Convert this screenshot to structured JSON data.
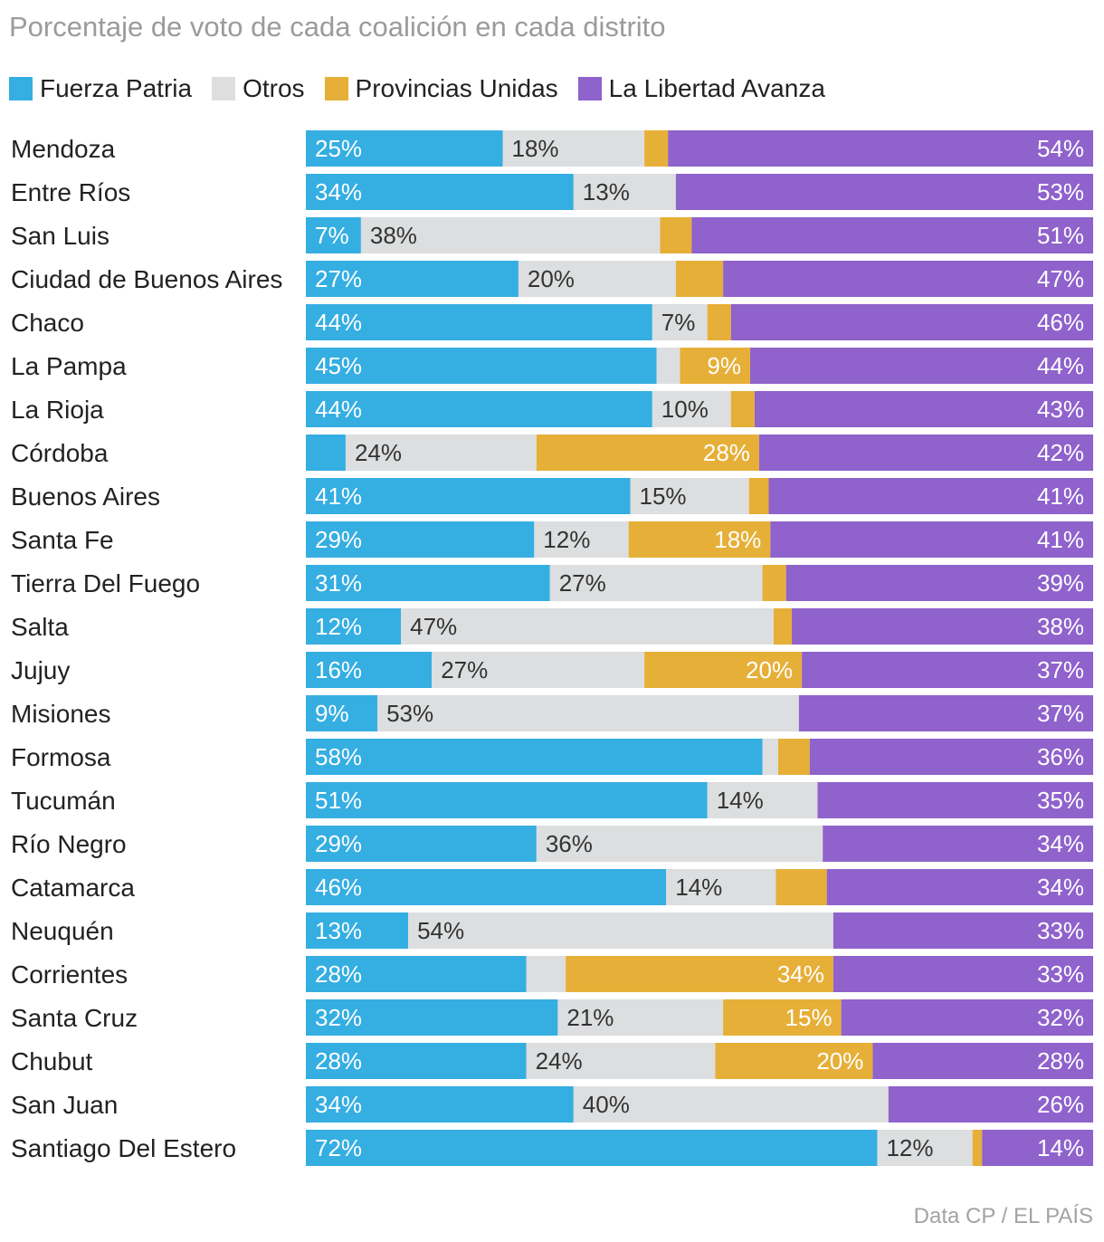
{
  "chart_data": {
    "type": "bar",
    "orientation": "horizontal",
    "stacked": true,
    "title": "Porcentaje de voto de cada coalición en cada distrito",
    "source": "Data CP / EL PAÍS",
    "series": [
      {
        "name": "Fuerza Patria",
        "color": "#35aee2",
        "values": [
          25,
          34,
          7,
          27,
          44,
          45,
          44,
          5,
          41,
          29,
          31,
          12,
          16,
          9,
          58,
          51,
          29,
          46,
          13,
          28,
          32,
          28,
          34,
          72
        ],
        "labels": [
          "25%",
          "34%",
          "7%",
          "27%",
          "44%",
          "45%",
          "44%",
          "",
          "41%",
          "29%",
          "31%",
          "12%",
          "16%",
          "9%",
          "58%",
          "51%",
          "29%",
          "46%",
          "13%",
          "28%",
          "32%",
          "28%",
          "34%",
          "72%"
        ]
      },
      {
        "name": "Otros",
        "color": "#dcdedf",
        "values": [
          18,
          13,
          38,
          20,
          7,
          3,
          10,
          24,
          15,
          12,
          27,
          47,
          27,
          53,
          2,
          14,
          36,
          14,
          54,
          5,
          21,
          24,
          40,
          12
        ],
        "labels": [
          "18%",
          "13%",
          "38%",
          "20%",
          "7%",
          "",
          "10%",
          "24%",
          "15%",
          "12%",
          "27%",
          "47%",
          "27%",
          "53%",
          "",
          "14%",
          "36%",
          "14%",
          "54%",
          "",
          "21%",
          "24%",
          "40%",
          "12%"
        ]
      },
      {
        "name": "Provincias Unidas",
        "color": "#e6af38",
        "values": [
          3,
          0,
          4,
          6,
          3,
          9,
          3,
          28,
          2.5,
          18,
          3,
          2.3,
          20,
          0,
          4,
          0,
          0,
          6.5,
          0,
          34,
          15,
          20,
          0,
          1.2
        ],
        "labels": [
          "",
          "",
          "",
          "",
          "",
          "9%",
          "",
          "28%",
          "",
          "18%",
          "",
          "",
          "20%",
          "",
          "",
          "",
          "",
          "",
          "",
          "34%",
          "15%",
          "20%",
          "",
          ""
        ]
      },
      {
        "name": "La Libertad Avanza",
        "color": "#8f62cc",
        "values": [
          54,
          53,
          51,
          47,
          46,
          44,
          43,
          42,
          41,
          41,
          39,
          38,
          37,
          37,
          36,
          35,
          34,
          34,
          33,
          33,
          32,
          28,
          26,
          14
        ],
        "labels": [
          "54%",
          "53%",
          "51%",
          "47%",
          "46%",
          "44%",
          "43%",
          "42%",
          "41%",
          "41%",
          "39%",
          "38%",
          "37%",
          "37%",
          "36%",
          "35%",
          "34%",
          "34%",
          "33%",
          "33%",
          "32%",
          "28%",
          "26%",
          "14%"
        ]
      }
    ],
    "categories": [
      "Mendoza",
      "Entre Ríos",
      "San Luis",
      "Ciudad de Buenos Aires",
      "Chaco",
      "La Pampa",
      "La Rioja",
      "Córdoba",
      "Buenos Aires",
      "Santa Fe",
      "Tierra Del Fuego",
      "Salta",
      "Jujuy",
      "Misiones",
      "Formosa",
      "Tucumán",
      "Río Negro",
      "Catamarca",
      "Neuquén",
      "Corrientes",
      "Santa Cruz",
      "Chubut",
      "San Juan",
      "Santiago Del Estero"
    ],
    "xlim": [
      0,
      100
    ],
    "legend_position": "top-left",
    "grid": false
  }
}
